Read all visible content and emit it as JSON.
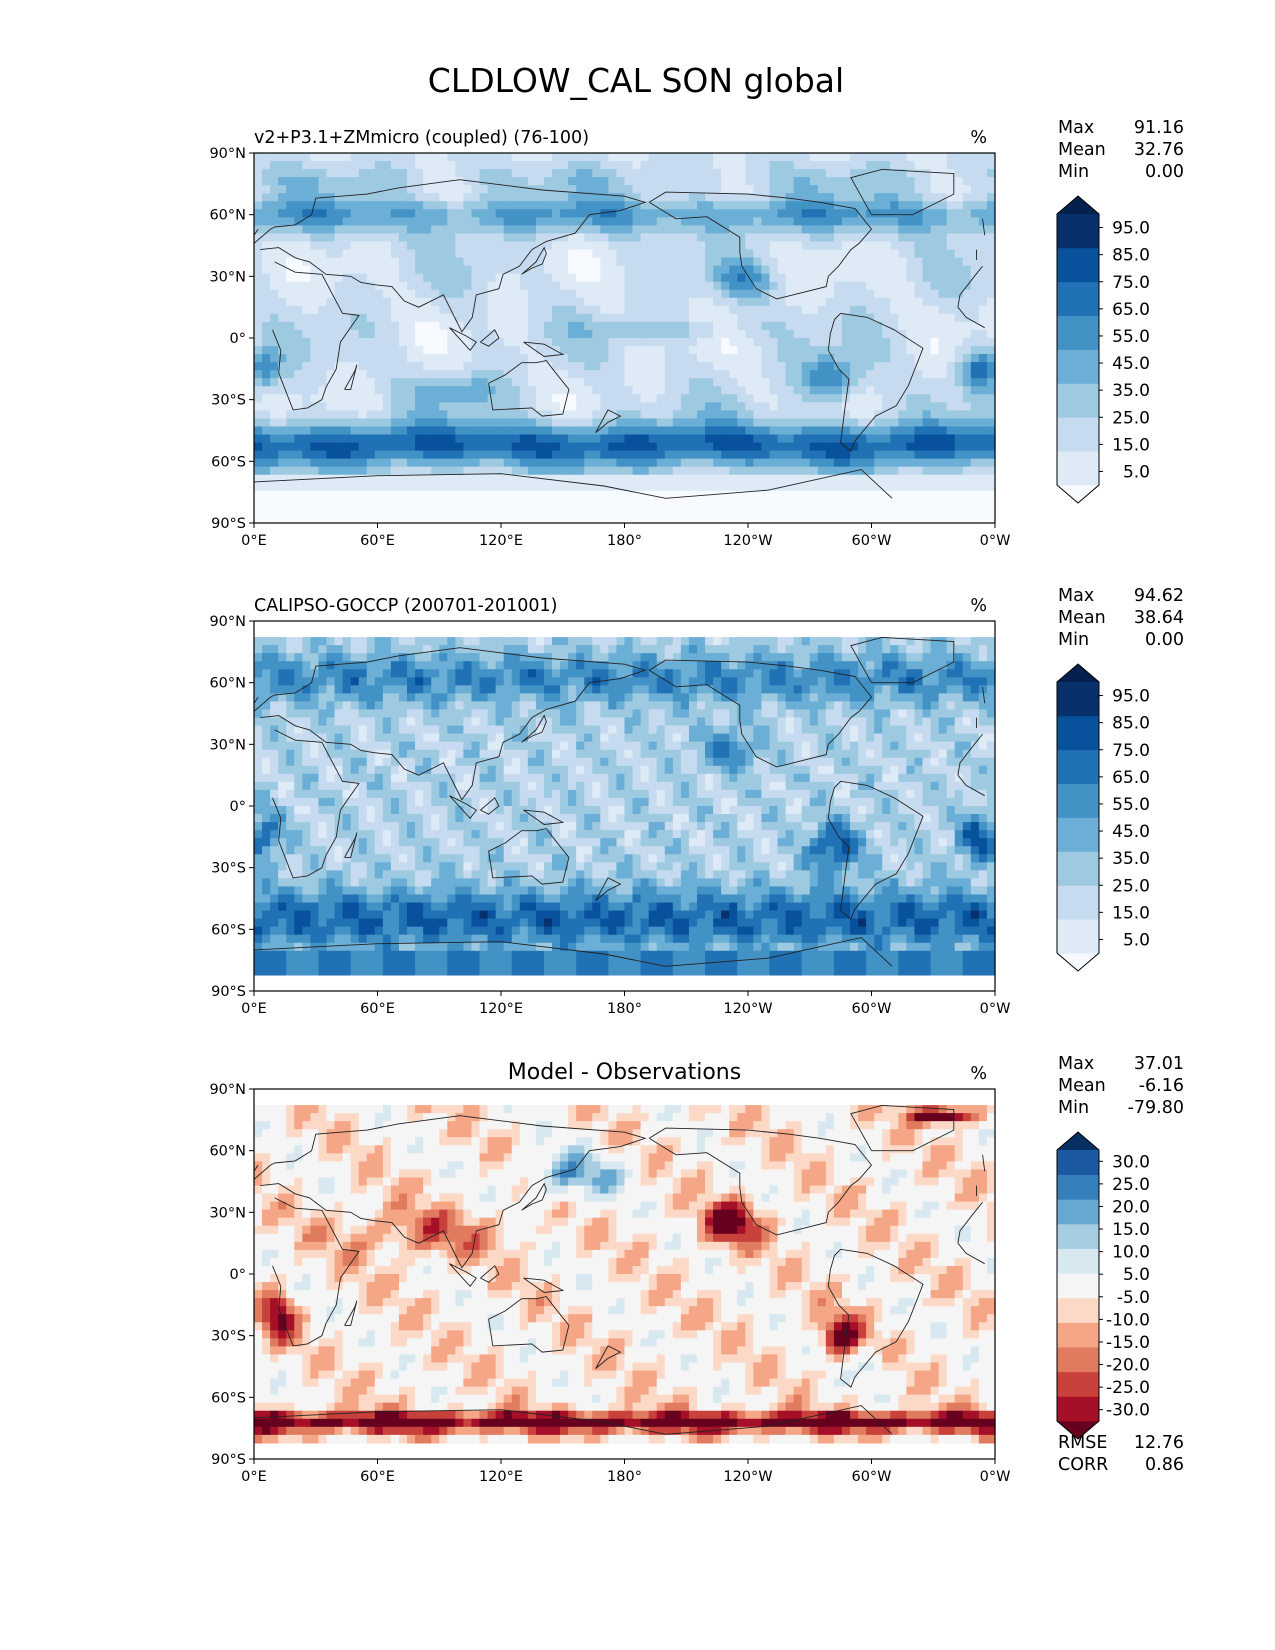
{
  "figure": {
    "title": "CLDLOW_CAL SON global"
  },
  "colors": {
    "blues": [
      "#f7fbff",
      "#deebf7",
      "#c6dbef",
      "#9ecae1",
      "#6baed6",
      "#4292c6",
      "#2171b5",
      "#08519c",
      "#08306b",
      "#04204f"
    ],
    "diverging": [
      "#67001f",
      "#a50f27",
      "#c9413b",
      "#e17b5f",
      "#f4a686",
      "#fcd9c6",
      "#f5f5f5",
      "#d8e8f1",
      "#a7cde3",
      "#66a8cf",
      "#3580bb",
      "#1b5aa0",
      "#053061"
    ],
    "land": "#ffffff",
    "coast": "#222222"
  },
  "axes": {
    "lat_ticks": [
      "90°N",
      "60°N",
      "30°N",
      "0°",
      "30°S",
      "60°S",
      "90°S"
    ],
    "lon_ticks": [
      "0°E",
      "60°E",
      "120°E",
      "180°",
      "120°W",
      "60°W",
      "0°W"
    ]
  },
  "chart_data": [
    {
      "type": "heatmap",
      "id": "model",
      "title": "v2+P3.1+ZMmicro (coupled) (76-100)",
      "units": "%",
      "stats": [
        {
          "label": "Max",
          "value": "91.16"
        },
        {
          "label": "Mean",
          "value": "32.76"
        },
        {
          "label": "Min",
          "value": "0.00"
        }
      ],
      "colorbar": {
        "levels": [
          0,
          10,
          20,
          30,
          40,
          50,
          60,
          70,
          80,
          90,
          100
        ],
        "labels": [
          "95.0",
          "85.0",
          "75.0",
          "65.0",
          "55.0",
          "45.0",
          "35.0",
          "25.0",
          "15.0",
          "5.0"
        ]
      },
      "xlim": [
        0,
        360
      ],
      "ylim": [
        -90,
        90
      ]
    },
    {
      "type": "heatmap",
      "id": "obs",
      "title": "CALIPSO-GOCCP (200701-201001)",
      "units": "%",
      "stats": [
        {
          "label": "Max",
          "value": "94.62"
        },
        {
          "label": "Mean",
          "value": "38.64"
        },
        {
          "label": "Min",
          "value": "0.00"
        }
      ],
      "colorbar": {
        "levels": [
          0,
          10,
          20,
          30,
          40,
          50,
          60,
          70,
          80,
          90,
          100
        ],
        "labels": [
          "95.0",
          "85.0",
          "75.0",
          "65.0",
          "55.0",
          "45.0",
          "35.0",
          "25.0",
          "15.0",
          "5.0"
        ]
      },
      "xlim": [
        0,
        360
      ],
      "ylim": [
        -90,
        90
      ]
    },
    {
      "type": "heatmap",
      "id": "diff",
      "title": "Model - Observations",
      "units": "%",
      "stats": [
        {
          "label": "Max",
          "value": "37.01"
        },
        {
          "label": "Mean",
          "value": "-6.16"
        },
        {
          "label": "Min",
          "value": "-79.80"
        }
      ],
      "metrics": [
        {
          "label": "RMSE",
          "value": "12.76"
        },
        {
          "label": "CORR",
          "value": "0.86"
        }
      ],
      "colorbar": {
        "levels": [
          -35,
          -30,
          -25,
          -20,
          -15,
          -10,
          -5,
          5,
          10,
          15,
          20,
          25,
          30,
          35
        ],
        "labels": [
          "30.0",
          "25.0",
          "20.0",
          "15.0",
          "10.0",
          "5.0",
          "-5.0",
          "-10.0",
          "-15.0",
          "-20.0",
          "-25.0",
          "-30.0"
        ]
      },
      "xlim": [
        0,
        360
      ],
      "ylim": [
        -90,
        90
      ]
    }
  ]
}
